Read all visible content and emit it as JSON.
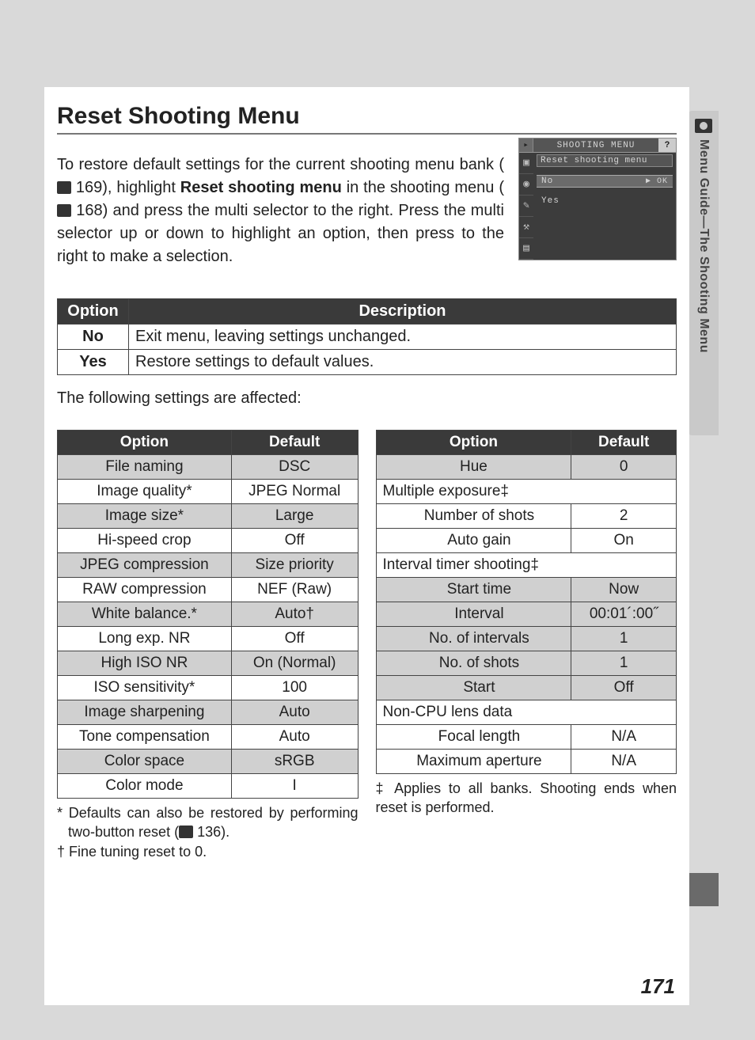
{
  "sidebar": {
    "label": "Menu Guide—The Shooting Menu"
  },
  "title": "Reset Shooting Menu",
  "intro": {
    "p1a": "To restore default settings for the current shooting menu bank (",
    "ref1": " 169), highlight ",
    "bold1": "Reset shooting menu",
    "p1b": " in the shooting menu (",
    "ref2": " 168) and press the multi selector to the right.  Press the multi selector up or down to highlight an option, then press to the right to make a selection."
  },
  "lcd": {
    "header_title": "SHOOTING MENU",
    "help": "?",
    "subtitle": "Reset shooting menu",
    "row_no": "No",
    "row_no_ok": "▶ OK",
    "row_yes": "Yes",
    "left_icons": [
      "▣",
      "◉",
      "✎",
      "⚒",
      "▤"
    ]
  },
  "opts_table": {
    "headers": [
      "Option",
      "Description"
    ],
    "rows": [
      {
        "opt": "No",
        "desc": "Exit menu, leaving settings unchanged."
      },
      {
        "opt": "Yes",
        "desc": "Restore settings to default values."
      }
    ]
  },
  "affected_label": "The following settings are affected:",
  "defaults_left": {
    "headers": [
      "Option",
      "Default"
    ],
    "rows": [
      {
        "o": "File naming",
        "d": "DSC",
        "shade": true
      },
      {
        "o": "Image quality*",
        "d": "JPEG Normal"
      },
      {
        "o": "Image size*",
        "d": "Large",
        "shade": true
      },
      {
        "o": "Hi-speed crop",
        "d": "Off"
      },
      {
        "o": "JPEG compression",
        "d": "Size priority",
        "shade": true
      },
      {
        "o": "RAW compression",
        "d": "NEF (Raw)"
      },
      {
        "o": "White balance.*",
        "d": "Auto†",
        "shade": true
      },
      {
        "o": "Long exp. NR",
        "d": "Off"
      },
      {
        "o": "High ISO NR",
        "d": "On (Normal)",
        "shade": true
      },
      {
        "o": "ISO sensitivity*",
        "d": "100"
      },
      {
        "o": "Image sharpening",
        "d": "Auto",
        "shade": true
      },
      {
        "o": "Tone compensation",
        "d": "Auto"
      },
      {
        "o": "Color space",
        "d": "sRGB",
        "shade": true
      },
      {
        "o": "Color mode",
        "d": "I"
      }
    ]
  },
  "defaults_right": {
    "headers": [
      "Option",
      "Default"
    ],
    "rows": [
      {
        "o": "Hue",
        "d": "0",
        "shade": true
      },
      {
        "section": "Multiple exposure‡"
      },
      {
        "o": "Number of shots",
        "d": "2",
        "indent": true
      },
      {
        "o": "Auto gain",
        "d": "On",
        "indent": true
      },
      {
        "section": "Interval timer shooting‡"
      },
      {
        "o": "Start time",
        "d": "Now",
        "indent": true,
        "shade": true
      },
      {
        "o": "Interval",
        "d": "00:01´:00˝",
        "indent": true,
        "shade": true
      },
      {
        "o": "No. of intervals",
        "d": "1",
        "indent": true,
        "shade": true
      },
      {
        "o": "No. of shots",
        "d": "1",
        "indent": true,
        "shade": true
      },
      {
        "o": "Start",
        "d": "Off",
        "indent": true,
        "shade": true
      },
      {
        "section": "Non-CPU lens data"
      },
      {
        "o": "Focal length",
        "d": "N/A",
        "indent": true
      },
      {
        "o": "Maximum aperture",
        "d": "N/A",
        "indent": true
      }
    ]
  },
  "footnote_left": {
    "l1": "* Defaults can also be restored by performing two-button reset (",
    "l1_ref": " 136).",
    "l2": "† Fine tuning reset to 0."
  },
  "footnote_right": "‡ Applies to all banks.  Shooting ends when reset is performed.",
  "page_number": "171",
  "colors": {
    "page_bg": "#ffffff",
    "outer_bg": "#d9d9d9",
    "header_bg": "#3a3a3a",
    "header_fg": "#ffffff",
    "shade_bg": "#d0d0d0",
    "border": "#444444"
  }
}
